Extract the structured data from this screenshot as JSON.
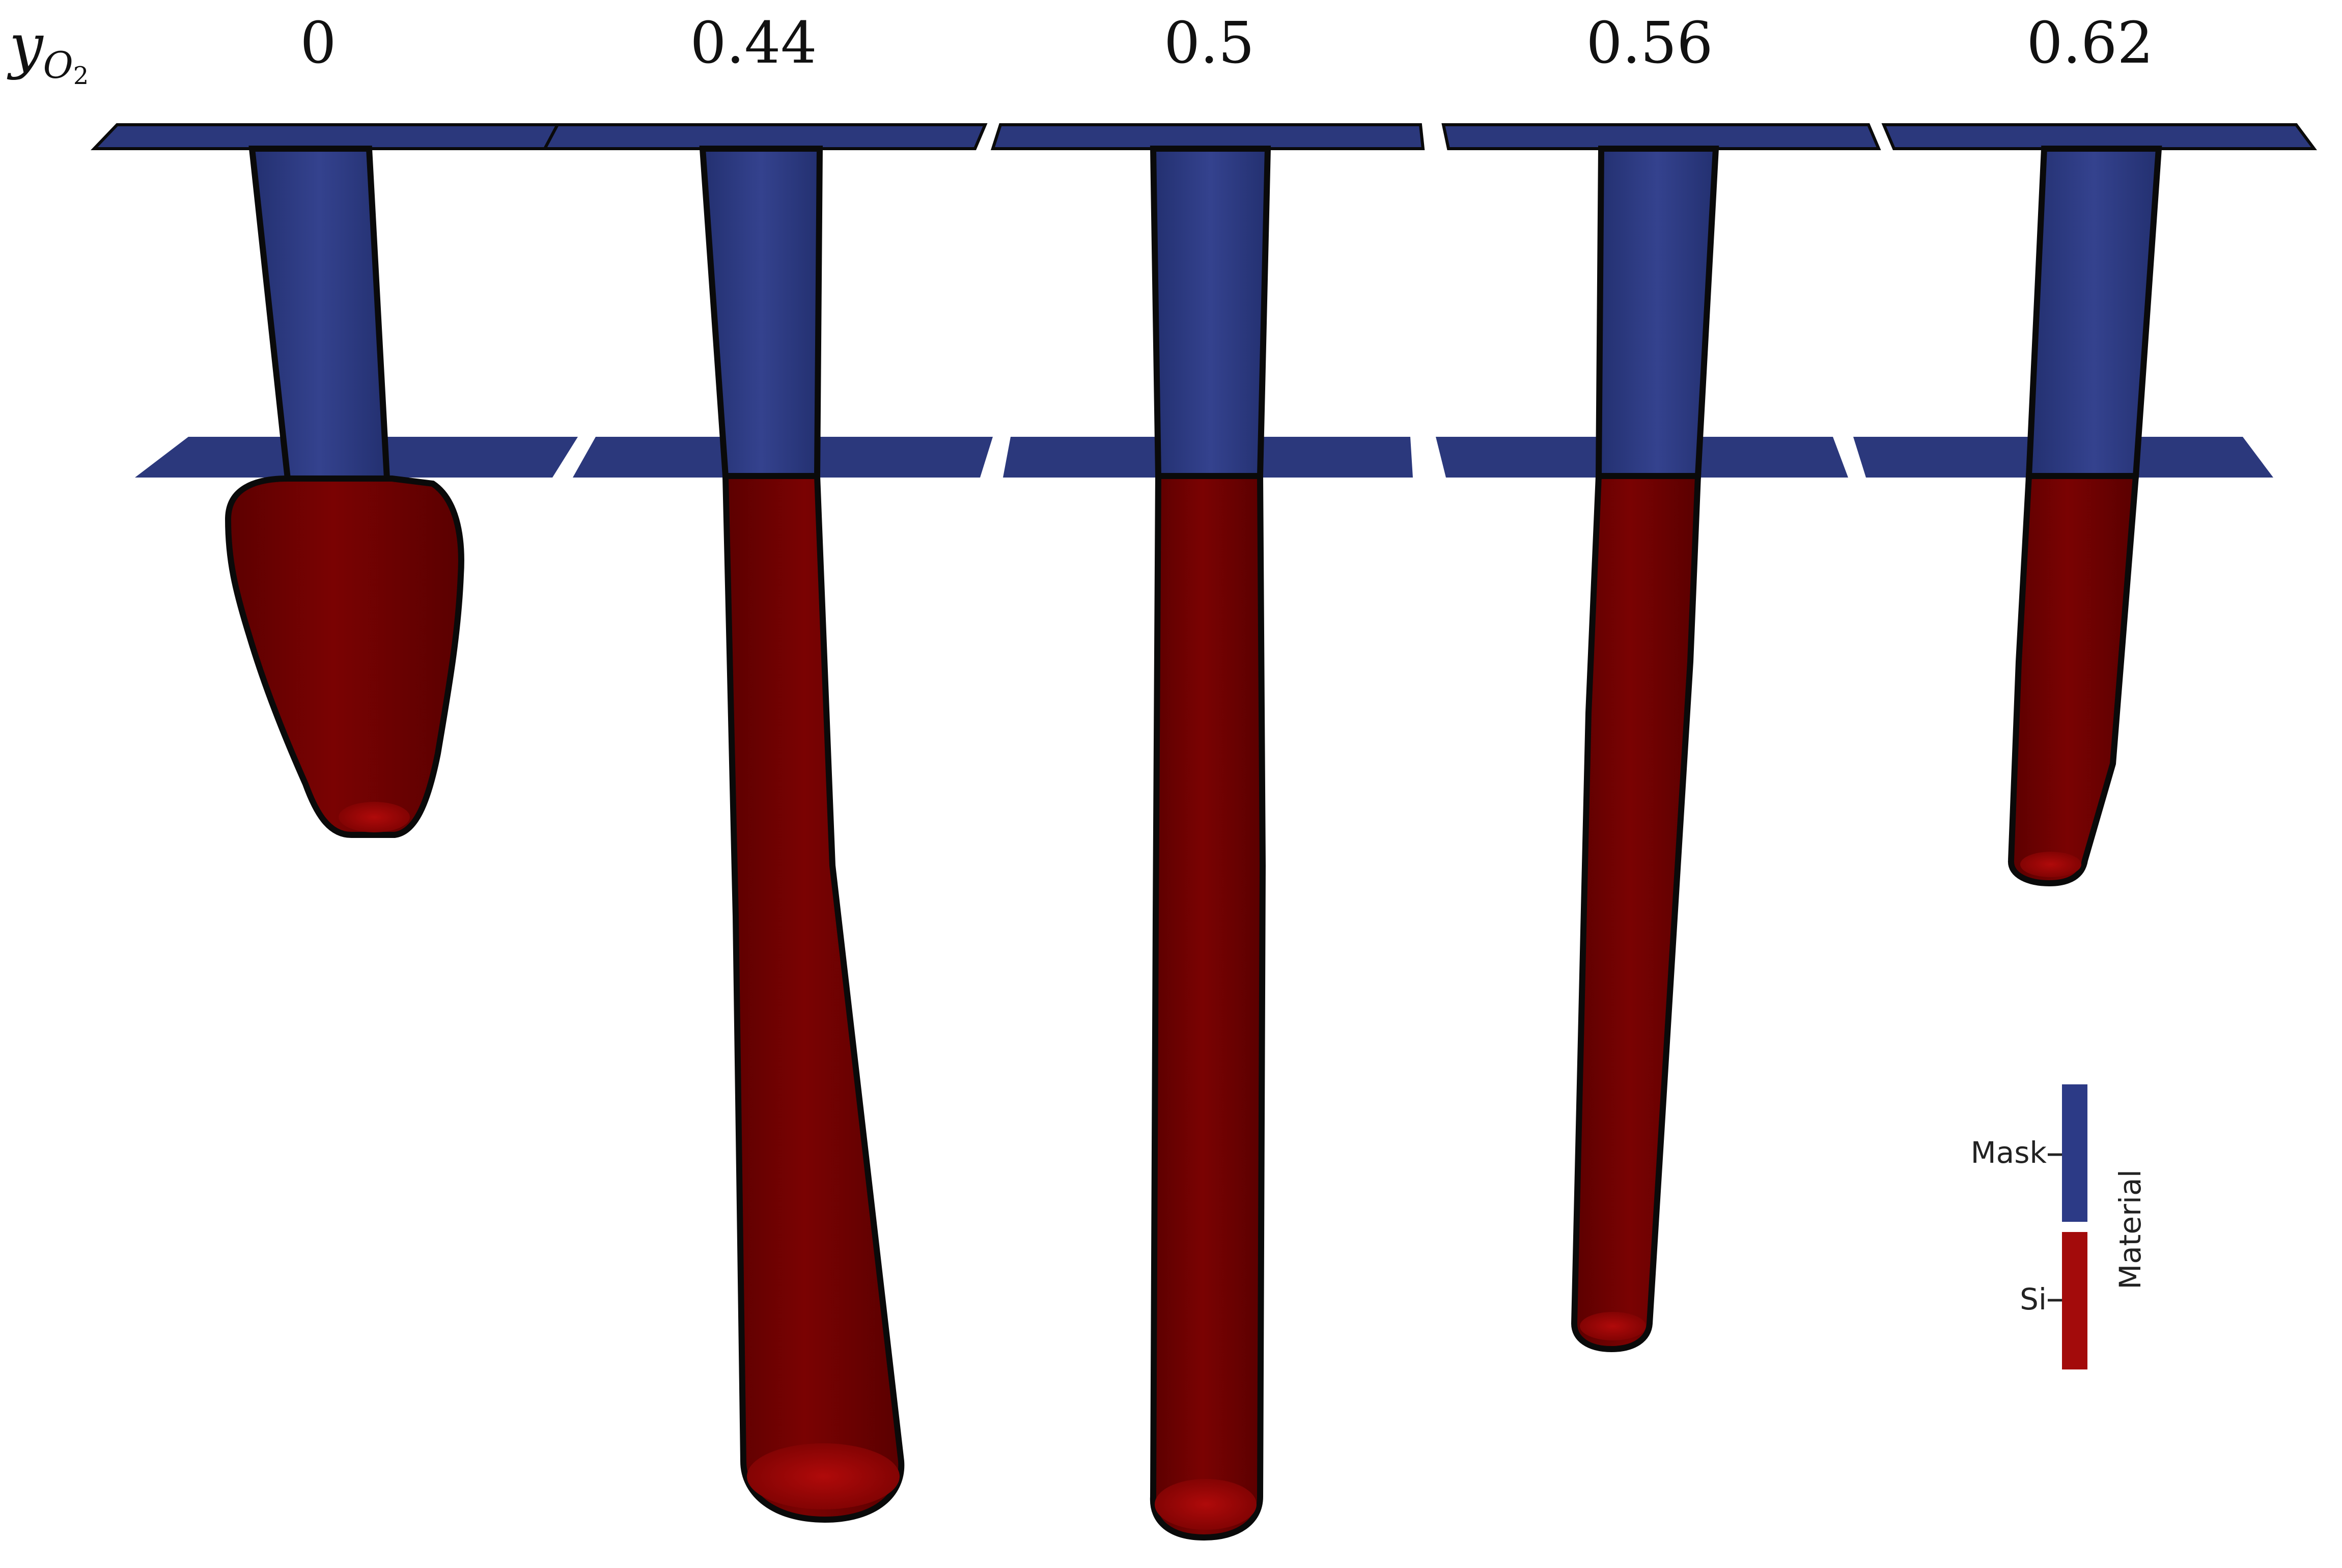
{
  "parameter": {
    "symbol": "y",
    "sub": "O",
    "subsub": "2"
  },
  "columns": [
    {
      "label": "0"
    },
    {
      "label": "0.44"
    },
    {
      "label": "0.5"
    },
    {
      "label": "0.56"
    },
    {
      "label": "0.62"
    }
  ],
  "legend": {
    "title": "Material",
    "items": [
      {
        "label": "Mask",
        "color": "#2c3a86"
      },
      {
        "label": "Si",
        "color": "#a30b0b"
      }
    ]
  },
  "colors": {
    "mask": "#2e3b80",
    "mask_edge": "#1d2758",
    "si": "#7d0303",
    "si_light": "#a00808",
    "outline": "#0a0a0a"
  }
}
